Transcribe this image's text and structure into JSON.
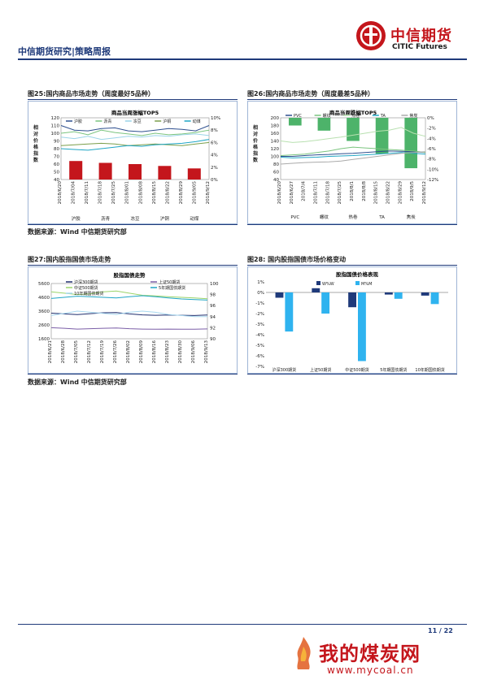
{
  "header": {
    "title": "中信期货研究|策略周报",
    "logo_cn": "中信期货",
    "logo_en": "CITIC Futures"
  },
  "figures": [
    {
      "title": "图25:国内商品市场走势（周度最好5品种）",
      "source": "数据来源：Wind 中信期货研究部"
    },
    {
      "title": "图26:国内商品市场走势（周度最差5品种）",
      "source": ""
    },
    {
      "title": "图27:国内股指国债市场走势",
      "source": "数据来源：Wind 中信期货研究部"
    },
    {
      "title": "图28: 国内股指国债市场价格变动",
      "source": ""
    }
  ],
  "chart_data": [
    {
      "type": "line",
      "title": "商品当周涨幅TOP5",
      "ylabel": "相对价格指数",
      "ylim": [
        40,
        120
      ],
      "y2lim": [
        0,
        10
      ],
      "x": [
        "2018/6/20",
        "2018/7/04",
        "2018/7/11",
        "2018/7/18",
        "2018/7/25",
        "2018/8/01",
        "2018/8/08",
        "2018/8/15",
        "2018/8/22",
        "2018/8/29",
        "2018/9/05",
        "2018/9/12"
      ],
      "series": [
        {
          "name": "沪胶",
          "color": "#2e4f8f",
          "values": [
            110,
            104,
            103,
            106,
            107,
            103,
            102,
            104,
            106,
            105,
            103,
            110
          ]
        },
        {
          "name": "沥青",
          "color": "#7bc47f",
          "values": [
            100,
            102,
            98,
            104,
            101,
            99,
            97,
            100,
            98,
            99,
            101,
            104
          ]
        },
        {
          "name": "冻豆",
          "color": "#9bd4e8",
          "values": [
            95,
            93,
            96,
            92,
            94,
            96,
            95,
            97,
            96,
            98,
            99,
            97
          ]
        },
        {
          "name": "沪铜",
          "color": "#7a9e4a",
          "values": [
            84,
            85,
            86,
            87,
            86,
            84,
            85,
            86,
            85,
            84,
            86,
            88
          ]
        },
        {
          "name": "动煤",
          "color": "#1fa5c4",
          "values": [
            80,
            79,
            78,
            80,
            82,
            84,
            83,
            85,
            86,
            87,
            89,
            92
          ]
        }
      ],
      "bars": {
        "categories": [
          "沪胶",
          "沥青",
          "冻豆",
          "沪铜",
          "动煤"
        ],
        "values": [
          3.0,
          2.7,
          2.5,
          2.2,
          1.8
        ],
        "color": "#c4161c"
      },
      "bar_labels": [
        "沪胶",
        "沥青",
        "冻豆",
        "沪铜",
        "动煤"
      ]
    },
    {
      "type": "line",
      "title": "商品当周跌幅TOP5",
      "ylabel": "相对价格指数",
      "ylim": [
        40,
        200
      ],
      "y2lim": [
        -12,
        0
      ],
      "x": [
        "2018/6/20",
        "2018/6/27",
        "2018/7/4",
        "2018/7/11",
        "2018/7/18",
        "2018/7/25",
        "2018/8/1",
        "2018/8/8",
        "2018/8/15",
        "2018/8/22",
        "2018/8/29",
        "2018/9/5",
        "2018/9/12"
      ],
      "series": [
        {
          "name": "PVC",
          "color": "#2e4f8f",
          "values": [
            100,
            100,
            102,
            104,
            105,
            107,
            108,
            110,
            112,
            114,
            113,
            112,
            110
          ]
        },
        {
          "name": "螺纹",
          "color": "#7bc47f",
          "values": [
            102,
            104,
            106,
            110,
            114,
            120,
            124,
            122,
            120,
            118,
            116,
            114,
            110
          ]
        },
        {
          "name": "热卷",
          "color": "#b8e0b0",
          "values": [
            140,
            136,
            138,
            142,
            146,
            150,
            155,
            160,
            165,
            168,
            175,
            160,
            152
          ]
        },
        {
          "name": "TA",
          "color": "#1fa5c4",
          "values": [
            98,
            96,
            97,
            98,
            100,
            101,
            102,
            104,
            106,
            108,
            110,
            108,
            106
          ]
        },
        {
          "name": "焦炭",
          "color": "#aaaaaa",
          "values": [
            80,
            82,
            84,
            85,
            86,
            88,
            92,
            96,
            100,
            104,
            108,
            110,
            112
          ]
        }
      ],
      "bars": {
        "categories": [
          "PVC",
          "螺纹",
          "热卷",
          "TA",
          "焦炭"
        ],
        "values": [
          -1.5,
          -2.5,
          -4.5,
          -7.0,
          -9.8
        ],
        "color": "#4db36a"
      },
      "bar_labels": [
        "PVC",
        "螺纹",
        "热卷",
        "TA",
        "焦炭"
      ]
    },
    {
      "type": "line",
      "title": "股指国债走势",
      "ylim": [
        1600,
        5600
      ],
      "y2lim": [
        90,
        100
      ],
      "x": [
        "2018/6/21",
        "2018/6/28",
        "2018/7/05",
        "2018/7/12",
        "2018/7/19",
        "2018/7/26",
        "2018/8/02",
        "2018/8/09",
        "2018/8/16",
        "2018/8/23",
        "2018/8/30",
        "2018/9/06",
        "2018/9/13"
      ],
      "series": [
        {
          "name": "沪深300期货",
          "axis": "left",
          "color": "#1f2e6e",
          "values": [
            3450,
            3400,
            3350,
            3420,
            3480,
            3500,
            3400,
            3330,
            3300,
            3320,
            3300,
            3280,
            3320
          ]
        },
        {
          "name": "上证50期货",
          "axis": "left",
          "color": "#7b5ea7",
          "values": [
            2400,
            2360,
            2300,
            2330,
            2360,
            2380,
            2330,
            2300,
            2290,
            2300,
            2290,
            2290,
            2310
          ]
        },
        {
          "name": "中证500期货",
          "axis": "left",
          "color": "#9bd46a",
          "values": [
            5000,
            4900,
            4800,
            4850,
            5000,
            5050,
            4900,
            4750,
            4700,
            4650,
            4600,
            4550,
            4500
          ]
        },
        {
          "name": "5年期国债期货",
          "axis": "right",
          "color": "#1fa5c4",
          "values": [
            97.3,
            97.5,
            97.7,
            97.6,
            97.5,
            97.4,
            97.6,
            97.8,
            97.6,
            97.4,
            97.2,
            97.1,
            97.0
          ]
        },
        {
          "name": "10年期国债期货",
          "axis": "right",
          "color": "#a8d8ef",
          "values": [
            94.2,
            94.6,
            95.0,
            94.8,
            94.6,
            94.4,
            94.8,
            95.0,
            94.8,
            94.4,
            94.2,
            94.0,
            94.0
          ]
        }
      ]
    },
    {
      "type": "bar",
      "title": "股指国债价格表现",
      "ylim": [
        -7,
        1
      ],
      "categories": [
        "沪深300期货",
        "上证50期货",
        "中证500期货",
        "5年期国债期货",
        "10年期国债期货"
      ],
      "series": [
        {
          "name": "W%W",
          "color": "#1f3a7a",
          "values": [
            -0.5,
            0.4,
            -1.4,
            -0.2,
            -0.3
          ]
        },
        {
          "name": "M%M",
          "color": "#2fb3ef",
          "values": [
            -3.7,
            -2.0,
            -6.5,
            -0.6,
            -1.1
          ]
        }
      ]
    }
  ],
  "footer": {
    "page": "11 / 22",
    "watermark": "我的煤炭网",
    "watermark_url": "www.mycoal.cn"
  }
}
